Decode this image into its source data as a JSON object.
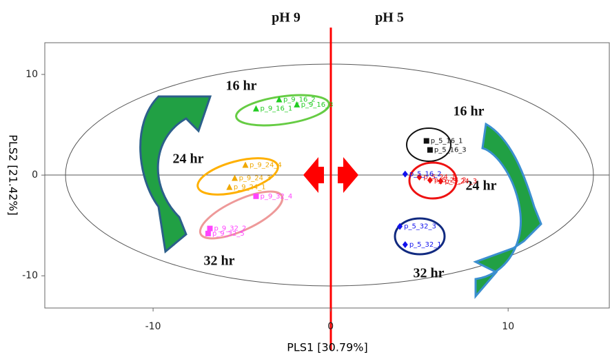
{
  "chart_data": {
    "type": "scatter",
    "xlabel": "PLS1 [30.79%]",
    "ylabel": "PLS2 [21.42%]",
    "xlim": [
      -16.1,
      15.7
    ],
    "ylim": [
      -13.2,
      13.15
    ],
    "xticks": [
      -10,
      0,
      10
    ],
    "yticks": [
      -10,
      0,
      10
    ],
    "annotations": [
      "pH 9",
      "pH 5",
      "16 hr",
      "24 hr",
      "32 hr",
      "16 hr",
      "24 hr",
      "32 hr"
    ],
    "series": [
      {
        "color": "#22cc22",
        "marker": "triangle",
        "x": [
          -4.2,
          -2.9,
          -1.9
        ],
        "y": [
          6.6,
          7.5,
          7.0
        ],
        "labels": [
          "p_9_16_1",
          "p_9_16_2",
          "p_9_16_3"
        ]
      },
      {
        "color": "#f0a800",
        "marker": "triangle",
        "x": [
          -5.7,
          -4.8,
          -5.4
        ],
        "y": [
          -1.2,
          1.0,
          -0.3
        ],
        "labels": [
          "p_9_24_1",
          "p_9_24_4",
          "p_9_24_3"
        ]
      },
      {
        "color": "#ff44ff",
        "marker": "square",
        "x": [
          -4.2,
          -6.9,
          -6.8
        ],
        "y": [
          -2.1,
          -5.8,
          -5.3
        ],
        "labels": [
          "p_9_32_4",
          "p_9_32_5",
          "p_9_32_2"
        ]
      },
      {
        "color": "#111111",
        "marker": "square",
        "x": [
          5.4,
          5.6
        ],
        "y": [
          3.4,
          2.5
        ],
        "labels": [
          "p_5_16_1",
          "p_5_16_3"
        ]
      },
      {
        "color": "#ee1111",
        "marker": "diamond",
        "x": [
          5.0,
          5.6,
          6.2
        ],
        "y": [
          -0.2,
          -0.5,
          -0.6
        ],
        "labels": [
          "p_5_24_1",
          "p_5_24_2",
          "p_5_24_3"
        ]
      },
      {
        "color": "#1111ee",
        "marker": "diamond",
        "x": [
          4.2,
          3.9,
          4.2
        ],
        "y": [
          0.1,
          -5.1,
          -6.9
        ],
        "labels": [
          "p_5_16_2",
          "p_5_32_3",
          "p_5_32_1"
        ]
      }
    ]
  }
}
